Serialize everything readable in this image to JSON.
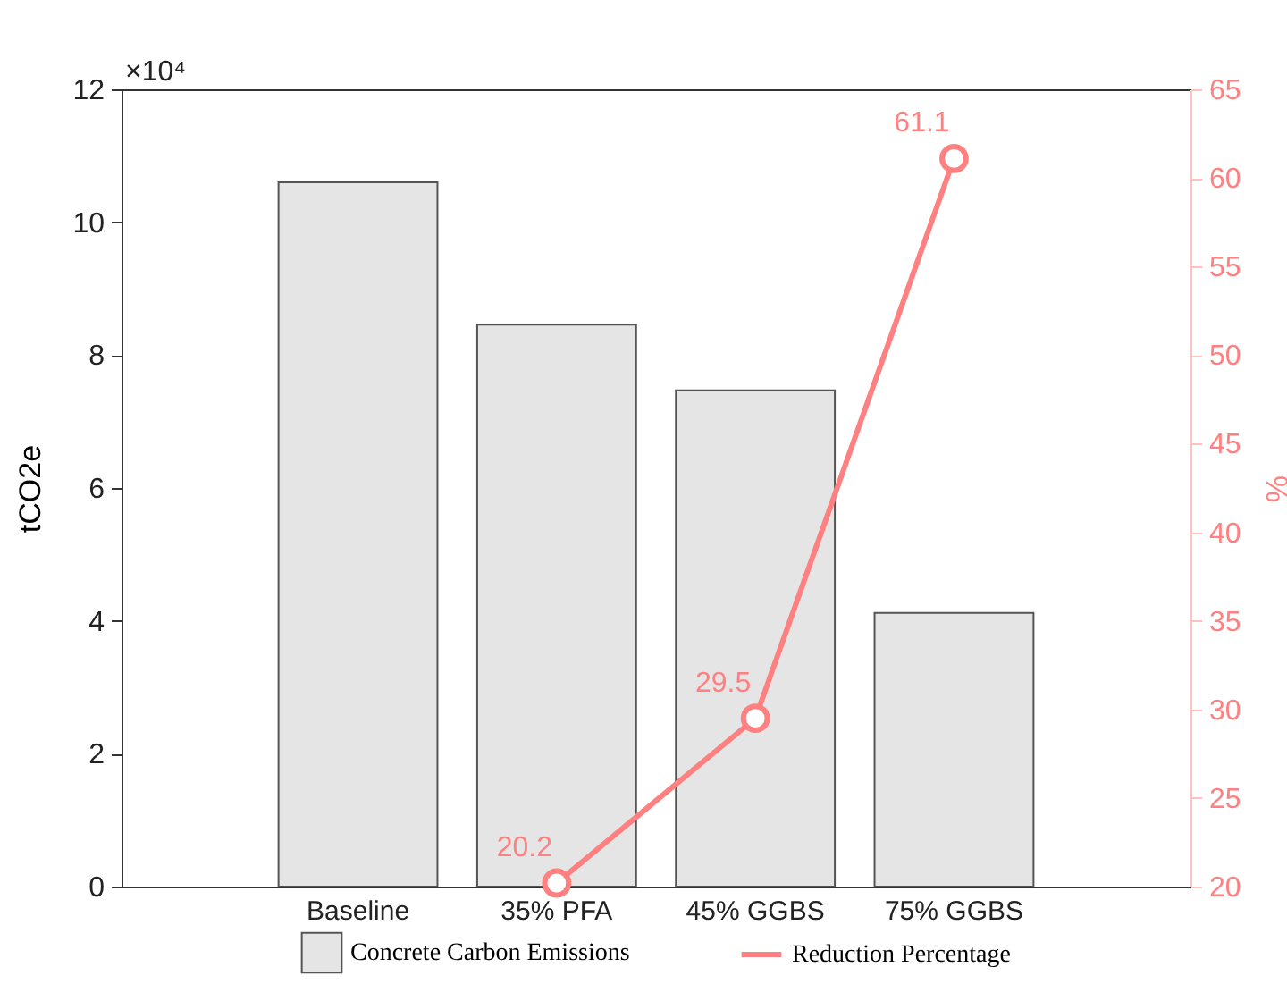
{
  "chart_data": {
    "type": "bar",
    "categories": [
      "Baseline",
      "35% PFA",
      "45% GGBS",
      "75% GGBS"
    ],
    "ylabel": "tCO2e",
    "y2label": "%",
    "ylim": [
      0,
      12
    ],
    "yticks": [
      0,
      2,
      4,
      6,
      8,
      10,
      12
    ],
    "y2lim": [
      20,
      65
    ],
    "y2ticks": [
      20,
      25,
      30,
      35,
      40,
      45,
      50,
      55,
      60,
      65
    ],
    "annotations": [
      "×10⁴"
    ],
    "legend": "bottom",
    "series": [
      {
        "name": "Concrete Carbon Emissions",
        "color": "#e5e5e5",
        "values": [
          10.6,
          8.46,
          7.47,
          4.12
        ]
      },
      {
        "name": "Reduction Percentage",
        "type": "line",
        "axis": "y2",
        "color": "#ff8080",
        "marker": "circle",
        "data_labels": true,
        "values": [
          null,
          20.2,
          29.5,
          61.1
        ]
      }
    ]
  }
}
